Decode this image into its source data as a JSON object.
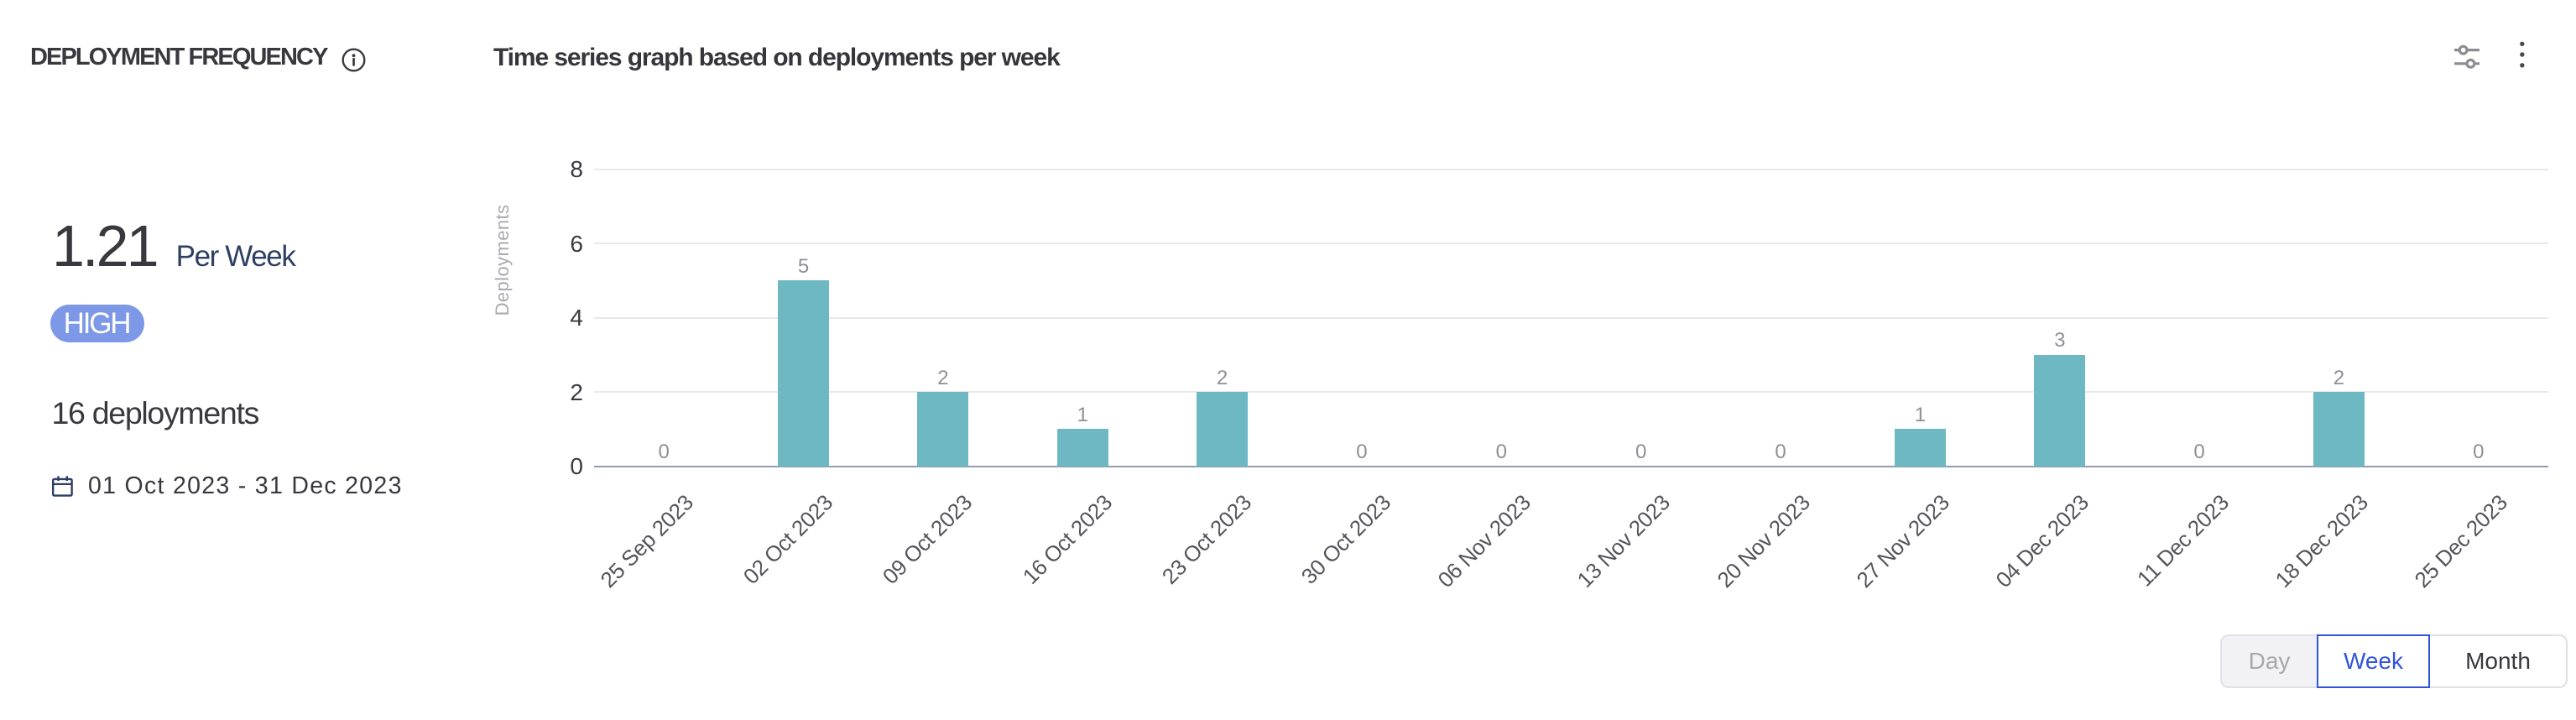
{
  "header": {
    "title": "DEPLOYMENT FREQUENCY",
    "subtitle": "Time series graph based on deployments per week"
  },
  "summary": {
    "value": "1.21",
    "unit_label": "Per Week",
    "badge": "HIGH",
    "total": "16 deployments",
    "date_range": "01 Oct 2023 - 31 Dec 2023"
  },
  "chart_data": {
    "type": "bar",
    "title": "Time series graph based on deployments per week",
    "categories": [
      "25 Sep 2023",
      "02 Oct 2023",
      "09 Oct 2023",
      "16 Oct 2023",
      "23 Oct 2023",
      "30 Oct 2023",
      "06 Nov 2023",
      "13 Nov 2023",
      "20 Nov 2023",
      "27 Nov 2023",
      "04 Dec 2023",
      "11 Dec 2023",
      "18 Dec 2023",
      "25 Dec 2023"
    ],
    "values": [
      0,
      5,
      2,
      1,
      2,
      0,
      0,
      0,
      0,
      1,
      3,
      0,
      2,
      0
    ],
    "xlabel": "",
    "ylabel": "Deployments",
    "ylim": [
      0,
      8
    ],
    "yticks": [
      0,
      2,
      4,
      6,
      8
    ],
    "grid": true,
    "legend_position": "none",
    "bar_color": "#6db8c3"
  },
  "controls": {
    "options": [
      "Day",
      "Week",
      "Month"
    ],
    "selected": "Week"
  },
  "colors": {
    "badge_bg": "#7d98e6",
    "accent_blue": "#3354da",
    "bar_teal": "#6db8c3",
    "text_dark": "#3a383f",
    "text_navy": "#2e3f63"
  }
}
